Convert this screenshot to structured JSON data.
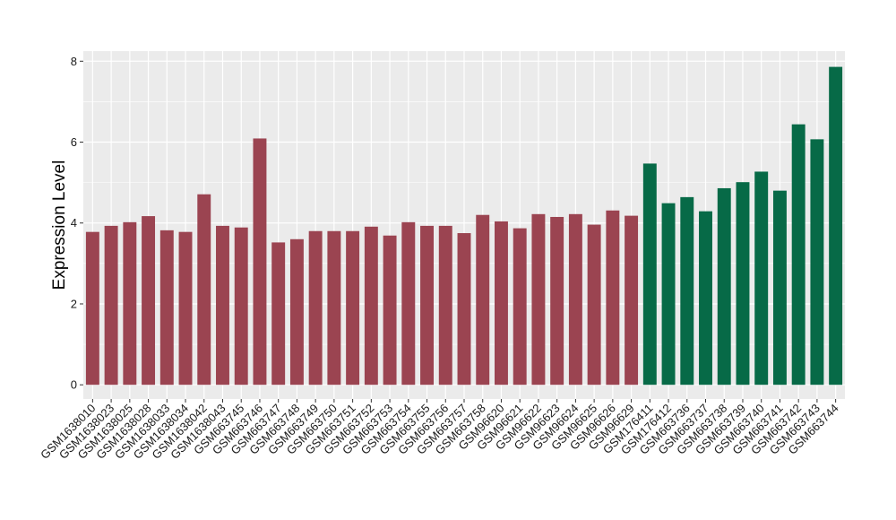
{
  "chart_data": {
    "type": "bar",
    "title": "",
    "xlabel": "",
    "ylabel": "Expression Level",
    "ylim": [
      -0.35,
      8.25
    ],
    "yticks": [
      0,
      2,
      4,
      6,
      8
    ],
    "grid": true,
    "legend": "none",
    "colors": {
      "group1": "#9b4451",
      "group2": "#076a47",
      "panel": "#ebebeb",
      "gridline": "#ffffff"
    },
    "categories": [
      "GSM1638010",
      "GSM1638023",
      "GSM1638025",
      "GSM1638028",
      "GSM1638033",
      "GSM1638034",
      "GSM1638042",
      "GSM1638043",
      "GSM663745",
      "GSM663746",
      "GSM663747",
      "GSM663748",
      "GSM663749",
      "GSM663750",
      "GSM663751",
      "GSM663752",
      "GSM663753",
      "GSM663754",
      "GSM663755",
      "GSM663756",
      "GSM663757",
      "GSM663758",
      "GSM96620",
      "GSM96621",
      "GSM96622",
      "GSM96623",
      "GSM96624",
      "GSM96625",
      "GSM96626",
      "GSM96629",
      "GSM176411",
      "GSM176412",
      "GSM663736",
      "GSM663737",
      "GSM663738",
      "GSM663739",
      "GSM663740",
      "GSM663741",
      "GSM663742",
      "GSM663743",
      "GSM663744"
    ],
    "values": [
      3.78,
      3.93,
      4.02,
      4.17,
      3.82,
      3.78,
      4.71,
      3.93,
      3.89,
      6.09,
      3.52,
      3.6,
      3.8,
      3.8,
      3.8,
      3.91,
      3.69,
      4.02,
      3.93,
      3.93,
      3.75,
      4.2,
      4.04,
      3.87,
      4.22,
      4.15,
      4.22,
      3.96,
      4.31,
      4.18,
      5.47,
      4.49,
      4.64,
      4.29,
      4.86,
      5.01,
      5.27,
      4.8,
      6.44,
      6.07,
      7.86
    ],
    "groups": [
      1,
      1,
      1,
      1,
      1,
      1,
      1,
      1,
      1,
      1,
      1,
      1,
      1,
      1,
      1,
      1,
      1,
      1,
      1,
      1,
      1,
      1,
      1,
      1,
      1,
      1,
      1,
      1,
      1,
      1,
      2,
      2,
      2,
      2,
      2,
      2,
      2,
      2,
      2,
      2,
      2
    ]
  }
}
